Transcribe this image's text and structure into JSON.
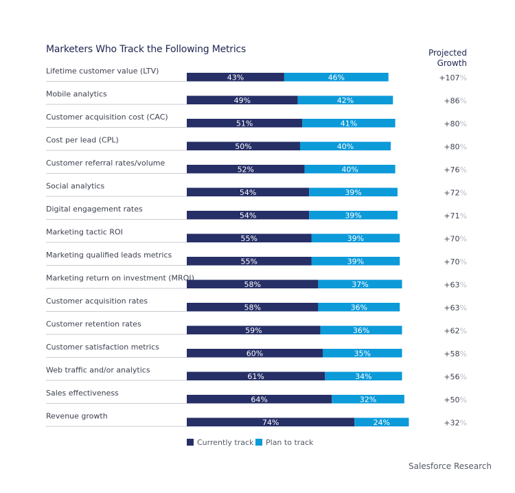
{
  "chart_data": {
    "type": "bar",
    "stacked": true,
    "orientation": "horizontal",
    "title": "Marketers Who Track the Following Metrics",
    "growth_header": "Projected Growth",
    "categories": [
      "Lifetime customer value (LTV)",
      "Mobile analytics",
      "Customer acquisition cost (CAC)",
      "Cost per lead (CPL)",
      "Customer referral rates/volume",
      "Social analytics",
      "Digital engagement rates",
      "Marketing tactic ROI",
      "Marketing qualified leads metrics",
      "Marketing return on investment (MROI)",
      "Customer acquisition rates",
      "Customer retention rates",
      "Customer satisfaction metrics",
      "Web traffic and/or analytics",
      "Sales effectiveness",
      "Revenue growth"
    ],
    "series": [
      {
        "name": "Currently track",
        "color": "#262f66",
        "values": [
          43,
          49,
          51,
          50,
          52,
          54,
          54,
          55,
          55,
          58,
          58,
          59,
          60,
          61,
          64,
          74
        ]
      },
      {
        "name": "Plan to track",
        "color": "#0c9ad9",
        "values": [
          46,
          42,
          41,
          40,
          40,
          39,
          39,
          39,
          39,
          37,
          36,
          36,
          35,
          34,
          32,
          24
        ]
      }
    ],
    "projected_growth": [
      "+107",
      "+86",
      "+80",
      "+80",
      "+76",
      "+72",
      "+71",
      "+70",
      "+70",
      "+63",
      "+63",
      "+62",
      "+58",
      "+56",
      "+50",
      "+32"
    ],
    "value_suffix": "%",
    "legend_position": "bottom-left",
    "source": "Salesforce Research"
  }
}
